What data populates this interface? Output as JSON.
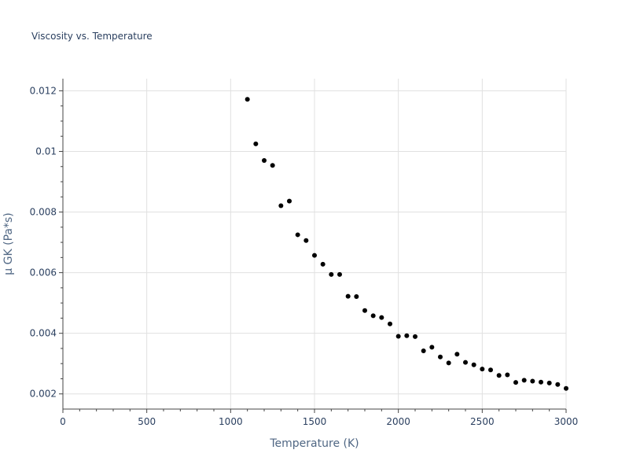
{
  "chart_data": {
    "type": "scatter",
    "title": "Viscosity vs. Temperature",
    "xlabel": "Temperature (K)",
    "ylabel": "μ GK (Pa*s)",
    "xlim": [
      0,
      3000
    ],
    "ylim": [
      0.0015,
      0.0124
    ],
    "xticks": [
      0,
      500,
      1000,
      1500,
      2000,
      2500,
      3000
    ],
    "xtick_labels": [
      "0",
      "500",
      "1000",
      "1500",
      "2000",
      "2500",
      "3000"
    ],
    "yticks": [
      0.002,
      0.004,
      0.006,
      0.008,
      0.01,
      0.012
    ],
    "ytick_labels": [
      "0.002",
      "0.004",
      "0.006",
      "0.008",
      "0.01",
      "0.012"
    ],
    "grid": true,
    "marker_color": "#000000",
    "series": [
      {
        "x": [
          1100,
          1150,
          1200,
          1250,
          1300,
          1350,
          1400,
          1450,
          1500,
          1550,
          1600,
          1650,
          1700,
          1750,
          1800,
          1850,
          1900,
          1950,
          2000,
          2050,
          2100,
          2150,
          2200,
          2250,
          2300,
          2350,
          2400,
          2450,
          2500,
          2550,
          2600,
          2650,
          2700,
          2750,
          2800,
          2850,
          2900,
          2950,
          3000
        ],
        "y": [
          0.01172,
          0.01025,
          0.0097,
          0.00954,
          0.00821,
          0.00836,
          0.00725,
          0.00706,
          0.00657,
          0.00628,
          0.00594,
          0.00594,
          0.00522,
          0.00521,
          0.00475,
          0.00458,
          0.00452,
          0.00431,
          0.0039,
          0.00392,
          0.00389,
          0.00342,
          0.00354,
          0.00322,
          0.00302,
          0.00331,
          0.00304,
          0.00296,
          0.00282,
          0.00279,
          0.00261,
          0.00263,
          0.00238,
          0.00245,
          0.00242,
          0.00239,
          0.00236,
          0.00231,
          0.00218
        ]
      }
    ]
  }
}
